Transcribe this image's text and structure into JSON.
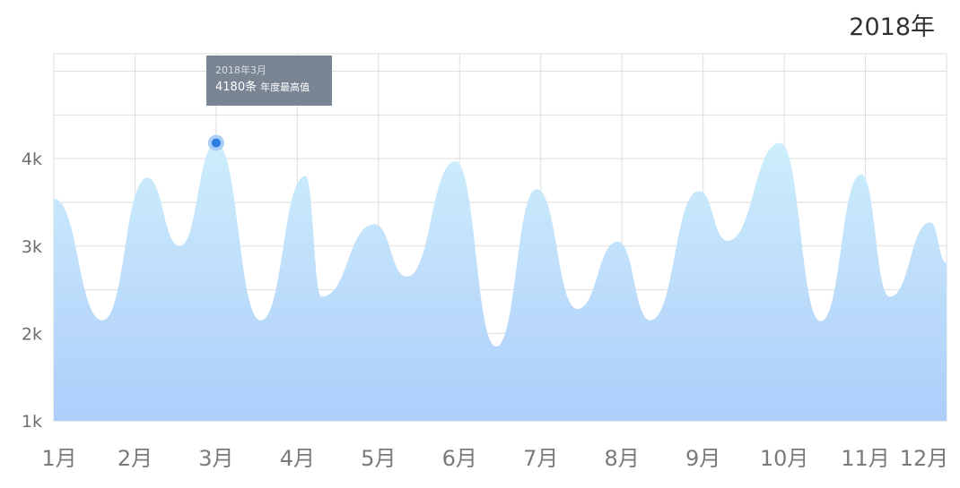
{
  "header": {
    "year": "2018年"
  },
  "tooltip": {
    "date": "2018年3月",
    "value": "4180条",
    "note": "年度最高值",
    "point": {
      "x": 3.0,
      "y": 4180
    }
  },
  "colors": {
    "area_top": "#cdeefb",
    "area_bottom": "#aecdfb",
    "grid": "#dedede",
    "marker": "#2b7de0",
    "marker_halo": "#a9cdf5",
    "tooltip_bg": "#7a8594"
  },
  "chart_data": {
    "type": "area",
    "title": "2018年",
    "x_tick_labels": [
      "1月",
      "2月",
      "3月",
      "4月",
      "5月",
      "6月",
      "7月",
      "8月",
      "9月",
      "10月",
      "11月",
      "12月"
    ],
    "y_tick_labels": [
      "1k",
      "2k",
      "3k",
      "4k"
    ],
    "xlim": [
      1,
      12
    ],
    "ylim": [
      1000,
      5200
    ],
    "grid": true,
    "series": [
      {
        "values": [
          [
            1.0,
            3540
          ],
          [
            1.6,
            2150
          ],
          [
            2.15,
            3780
          ],
          [
            2.55,
            3000
          ],
          [
            3.0,
            4180
          ],
          [
            3.55,
            2150
          ],
          [
            4.1,
            3800
          ],
          [
            4.3,
            2420
          ],
          [
            4.95,
            3250
          ],
          [
            5.35,
            2650
          ],
          [
            5.95,
            3970
          ],
          [
            6.45,
            1850
          ],
          [
            6.95,
            3650
          ],
          [
            7.45,
            2280
          ],
          [
            7.95,
            3050
          ],
          [
            8.35,
            2150
          ],
          [
            8.95,
            3630
          ],
          [
            9.3,
            3060
          ],
          [
            9.95,
            4180
          ],
          [
            10.45,
            2140
          ],
          [
            10.95,
            3820
          ],
          [
            11.3,
            2420
          ],
          [
            11.8,
            3270
          ],
          [
            12.0,
            2810
          ]
        ]
      }
    ]
  }
}
